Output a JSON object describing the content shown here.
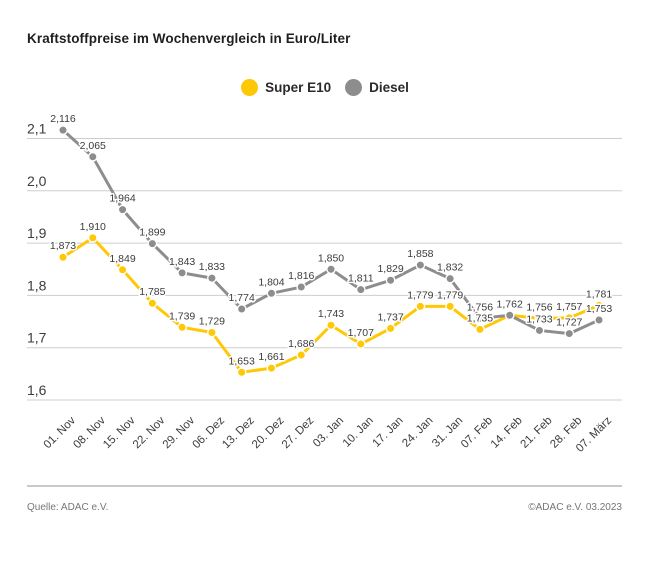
{
  "title": "Kraftstoffpreise im Wochenvergleich in Euro/Liter",
  "legend": {
    "items": [
      {
        "label": "Super E10",
        "color": "#FFC805"
      },
      {
        "label": "Diesel",
        "color": "#8D8D8D"
      }
    ]
  },
  "footer": {
    "left": "Quelle: ADAC e.V.",
    "right": "©ADAC e.V. 03.2023"
  },
  "chart_data": {
    "type": "line",
    "title": "Kraftstoffpreise im Wochenvergleich in Euro/Liter",
    "unit": "Euro/Liter",
    "x": [
      "01. Nov",
      "08. Nov",
      "15. Nov",
      "22. Nov",
      "29. Nov",
      "06. Dez",
      "13. Dez",
      "20. Dez",
      "27. Dez",
      "03. Jan",
      "10. Jan",
      "17. Jan",
      "24. Jan",
      "31. Jan",
      "07. Feb",
      "14. Feb",
      "21. Feb",
      "28. Feb",
      "07. März"
    ],
    "series": [
      {
        "name": "Super E10",
        "color": "#FFC805",
        "values": [
          1.873,
          1.91,
          1.849,
          1.785,
          1.739,
          1.729,
          1.653,
          1.661,
          1.686,
          1.743,
          1.707,
          1.737,
          1.779,
          1.779,
          1.735,
          1.762,
          1.756,
          1.757,
          1.781
        ],
        "labels": [
          "1,873",
          "1,910",
          "1,849",
          "1,785",
          "1,739",
          "1,729",
          "1,653",
          "1,661",
          "1,686",
          "1,743",
          "1,707",
          "1,737",
          "1,779",
          "1,779",
          "1,735",
          "1,762",
          "1,756",
          "1,757",
          "1,781"
        ]
      },
      {
        "name": "Diesel",
        "color": "#8D8D8D",
        "values": [
          2.116,
          2.065,
          1.964,
          1.899,
          1.843,
          1.833,
          1.774,
          1.804,
          1.816,
          1.85,
          1.811,
          1.829,
          1.858,
          1.832,
          1.756,
          1.762,
          1.733,
          1.727,
          1.753
        ],
        "labels": [
          "2,116",
          "2,065",
          "1,964",
          "1,899",
          "1,843",
          "1,833",
          "1,774",
          "1,804",
          "1,816",
          "1,850",
          "1,811",
          "1,829",
          "1,858",
          "1,832",
          "1,756",
          "1,762",
          "1,733",
          "1,727",
          "1,753"
        ]
      }
    ],
    "ylim": [
      1.6,
      2.15
    ],
    "yticks": {
      "values": [
        2.1,
        2.0,
        1.9,
        1.8,
        1.7,
        1.6
      ],
      "labels": [
        "2,1",
        "2,0",
        "1,9",
        "1,8",
        "1,7",
        "1,6"
      ]
    },
    "grid": true,
    "legend_position": "top-center",
    "grid_color": "#CDCDCD",
    "axis_text_color": "#3C3C3C",
    "value_label_color": "#3C3C3C"
  }
}
